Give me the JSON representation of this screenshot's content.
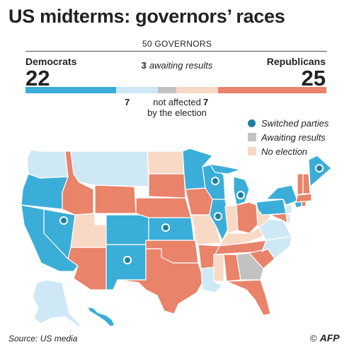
{
  "title": "US midterms: governors’ races",
  "total_label": "50 GOVERNORS",
  "democrats": {
    "label": "Democrats",
    "count": "22"
  },
  "republicans": {
    "label": "Republicans",
    "count": "25"
  },
  "awaiting": {
    "count": "3",
    "label": "awaiting results"
  },
  "not_affected": {
    "dem_count": "7",
    "rep_count": "7",
    "label_line1": "not affected",
    "label_line2": "by the election"
  },
  "bar": {
    "dem_elected": 15,
    "dem_not_affected": 7,
    "awaiting": 3,
    "rep_not_affected": 7,
    "rep_elected": 18
  },
  "legend": {
    "switched": "Switched parties",
    "awaiting": "Awaiting results",
    "no_election": "No election"
  },
  "colors": {
    "democrat": "#3aaed8",
    "democrat_light": "#cfe8f5",
    "republican": "#e9836a",
    "republican_light": "#f8d9c6",
    "awaiting": "#c2c2c2",
    "switched_dot": "#1b7fa6"
  },
  "source": "Source: US media",
  "logo": {
    "copyright": "©",
    "text": "AFP"
  }
}
